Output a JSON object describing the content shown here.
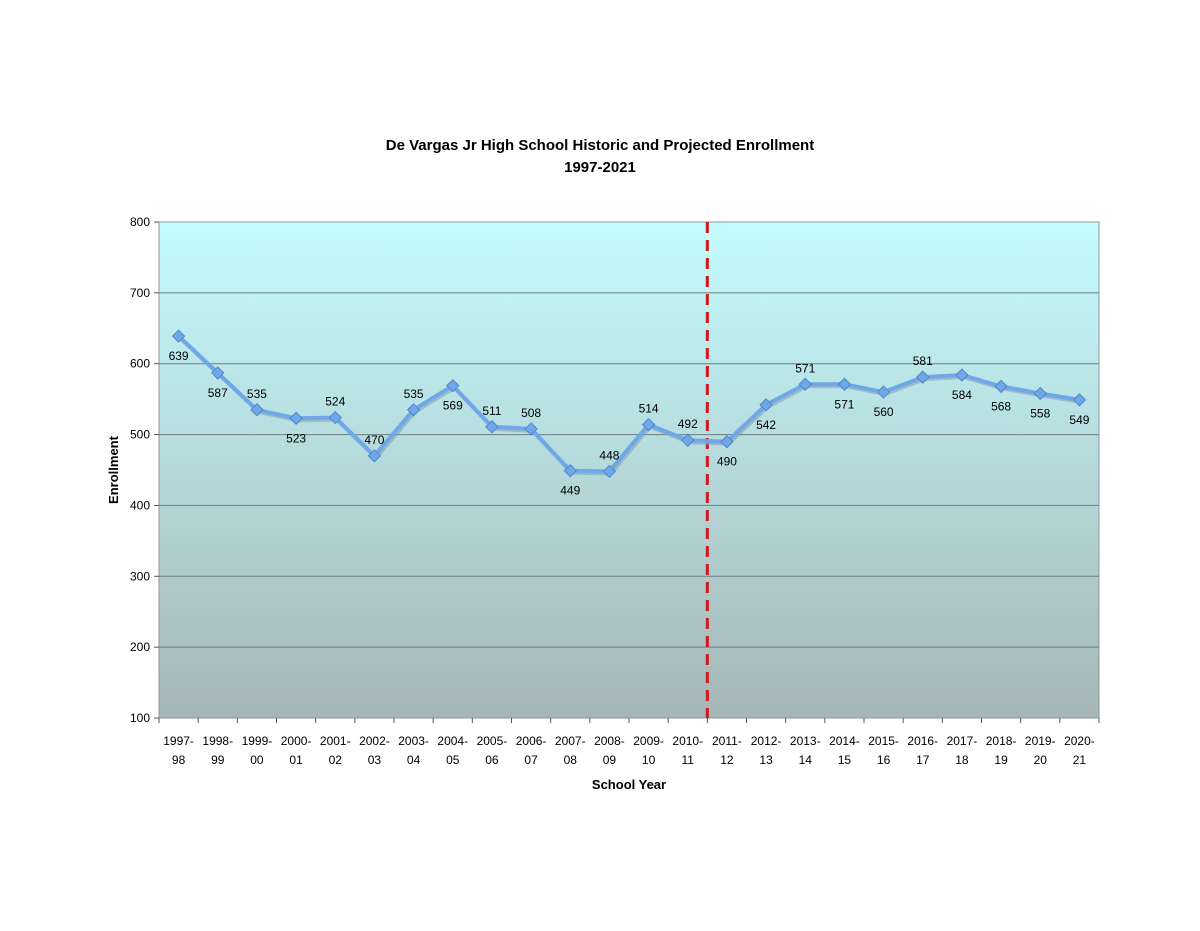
{
  "chart_data": {
    "type": "line",
    "title": "De Vargas Jr High School Historic and Projected Enrollment",
    "subtitle": "1997-2021",
    "xlabel": "School Year",
    "ylabel": "Enrollment",
    "ylim": [
      100,
      800
    ],
    "yticks": [
      100,
      200,
      300,
      400,
      500,
      600,
      700,
      800
    ],
    "grid": "horizontal",
    "categories": [
      [
        "1997-",
        "98"
      ],
      [
        "1998-",
        "99"
      ],
      [
        "1999-",
        "00"
      ],
      [
        "2000-",
        "01"
      ],
      [
        "2001-",
        "02"
      ],
      [
        "2002-",
        "03"
      ],
      [
        "2003-",
        "04"
      ],
      [
        "2004-",
        "05"
      ],
      [
        "2005-",
        "06"
      ],
      [
        "2006-",
        "07"
      ],
      [
        "2007-",
        "08"
      ],
      [
        "2008-",
        "09"
      ],
      [
        "2009-",
        "10"
      ],
      [
        "2010-",
        "11"
      ],
      [
        "2011-",
        "12"
      ],
      [
        "2012-",
        "13"
      ],
      [
        "2013-",
        "14"
      ],
      [
        "2014-",
        "15"
      ],
      [
        "2015-",
        "16"
      ],
      [
        "2016-",
        "17"
      ],
      [
        "2017-",
        "18"
      ],
      [
        "2018-",
        "19"
      ],
      [
        "2019-",
        "20"
      ],
      [
        "2020-",
        "21"
      ]
    ],
    "series": [
      {
        "values": [
          639,
          587,
          535,
          523,
          524,
          470,
          535,
          569,
          511,
          508,
          449,
          448,
          514,
          492,
          490,
          542,
          571,
          571,
          560,
          581,
          584,
          568,
          558,
          549
        ],
        "label_positions": [
          "below",
          "below",
          "above",
          "below",
          "above",
          "above",
          "above",
          "below",
          "above",
          "above",
          "below",
          "above",
          "above",
          "above",
          "below",
          "below",
          "above",
          "below",
          "below",
          "above",
          "below",
          "below",
          "below",
          "below"
        ],
        "color": "#6fa8e8"
      }
    ],
    "divider": {
      "between_category_index": [
        13,
        14
      ],
      "style": "dashed",
      "color": "#d0181d"
    },
    "plot_gradient": [
      "#c4fcff",
      "#a6b6b6"
    ]
  }
}
